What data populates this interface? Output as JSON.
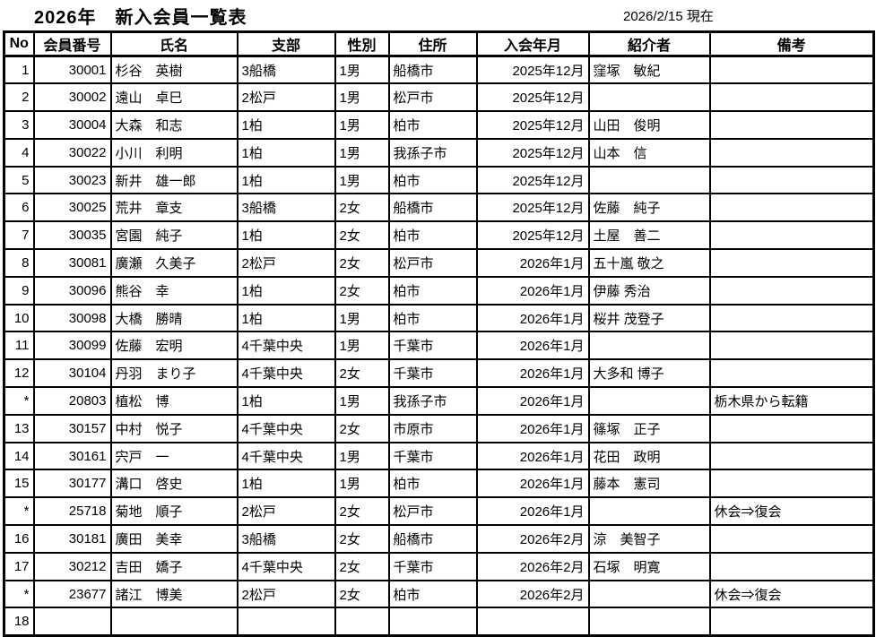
{
  "page": {
    "title": "2026年　新入会員一覧表",
    "as_of_date": "2026/2/15 現在"
  },
  "colors": {
    "text": "#000000",
    "background": "#ffffff",
    "grid": "#000000"
  },
  "table": {
    "columns": [
      {
        "key": "no",
        "label": "No"
      },
      {
        "key": "member_no",
        "label": "会員番号"
      },
      {
        "key": "name",
        "label": "氏名"
      },
      {
        "key": "branch",
        "label": "支部"
      },
      {
        "key": "gender",
        "label": "性別"
      },
      {
        "key": "address",
        "label": "住所"
      },
      {
        "key": "join_month",
        "label": "入会年月"
      },
      {
        "key": "introducer",
        "label": "紹介者"
      },
      {
        "key": "remarks",
        "label": "備考"
      }
    ],
    "rows": [
      {
        "no": "1",
        "member_no": "30001",
        "name": "杉谷　英樹",
        "branch": "3船橋",
        "gender": "1男",
        "address": "船橋市",
        "join_month": "2025年12月",
        "introducer": "窪塚　敏紀",
        "remarks": ""
      },
      {
        "no": "2",
        "member_no": "30002",
        "name": "遠山　卓巳",
        "branch": "2松戸",
        "gender": "1男",
        "address": "松戸市",
        "join_month": "2025年12月",
        "introducer": "",
        "remarks": ""
      },
      {
        "no": "3",
        "member_no": "30004",
        "name": "大森　和志",
        "branch": "1柏",
        "gender": "1男",
        "address": "柏市",
        "join_month": "2025年12月",
        "introducer": "山田　俊明",
        "remarks": ""
      },
      {
        "no": "4",
        "member_no": "30022",
        "name": "小川　利明",
        "branch": "1柏",
        "gender": "1男",
        "address": "我孫子市",
        "join_month": "2025年12月",
        "introducer": "山本　信",
        "remarks": ""
      },
      {
        "no": "5",
        "member_no": "30023",
        "name": "新井　雄一郎",
        "branch": "1柏",
        "gender": "1男",
        "address": "柏市",
        "join_month": "2025年12月",
        "introducer": "",
        "remarks": ""
      },
      {
        "no": "6",
        "member_no": "30025",
        "name": "荒井　章支",
        "branch": "3船橋",
        "gender": "2女",
        "address": "船橋市",
        "join_month": "2025年12月",
        "introducer": "佐藤　純子",
        "remarks": ""
      },
      {
        "no": "7",
        "member_no": "30035",
        "name": "宮園　純子",
        "branch": "1柏",
        "gender": "2女",
        "address": "柏市",
        "join_month": "2025年12月",
        "introducer": "土屋　善二",
        "remarks": ""
      },
      {
        "no": "8",
        "member_no": "30081",
        "name": "廣瀬　久美子",
        "branch": "2松戸",
        "gender": "2女",
        "address": "松戸市",
        "join_month": "2026年1月",
        "introducer": "五十嵐 敬之",
        "remarks": ""
      },
      {
        "no": "9",
        "member_no": "30096",
        "name": "熊谷　幸",
        "branch": "1柏",
        "gender": "2女",
        "address": "柏市",
        "join_month": "2026年1月",
        "introducer": "伊藤 秀治",
        "remarks": ""
      },
      {
        "no": "10",
        "member_no": "30098",
        "name": "大橋　勝晴",
        "branch": "1柏",
        "gender": "1男",
        "address": "柏市",
        "join_month": "2026年1月",
        "introducer": "桜井 茂登子",
        "remarks": ""
      },
      {
        "no": "11",
        "member_no": "30099",
        "name": "佐藤　宏明",
        "branch": "4千葉中央",
        "gender": "1男",
        "address": "千葉市",
        "join_month": "2026年1月",
        "introducer": "",
        "remarks": ""
      },
      {
        "no": "12",
        "member_no": "30104",
        "name": "丹羽　まり子",
        "branch": "4千葉中央",
        "gender": "2女",
        "address": "千葉市",
        "join_month": "2026年1月",
        "introducer": "大多和 博子",
        "remarks": ""
      },
      {
        "no": "*",
        "member_no": "20803",
        "name": "植松　博",
        "branch": "1柏",
        "gender": "1男",
        "address": "我孫子市",
        "join_month": "2026年1月",
        "introducer": "",
        "remarks": "栃木県から転籍"
      },
      {
        "no": "13",
        "member_no": "30157",
        "name": "中村　悦子",
        "branch": "4千葉中央",
        "gender": "2女",
        "address": "市原市",
        "join_month": "2026年1月",
        "introducer": "篠塚　正子",
        "remarks": ""
      },
      {
        "no": "14",
        "member_no": "30161",
        "name": "宍戸　一",
        "branch": "4千葉中央",
        "gender": "1男",
        "address": "千葉市",
        "join_month": "2026年1月",
        "introducer": "花田　政明",
        "remarks": ""
      },
      {
        "no": "15",
        "member_no": "30177",
        "name": "溝口　啓史",
        "branch": "1柏",
        "gender": "1男",
        "address": "柏市",
        "join_month": "2026年1月",
        "introducer": "藤本　憲司",
        "remarks": ""
      },
      {
        "no": "*",
        "member_no": "25718",
        "name": "菊地　順子",
        "branch": "2松戸",
        "gender": "2女",
        "address": "松戸市",
        "join_month": "2026年1月",
        "introducer": "",
        "remarks": "休会⇒復会"
      },
      {
        "no": "16",
        "member_no": "30181",
        "name": "廣田　美幸",
        "branch": "3船橋",
        "gender": "2女",
        "address": "船橋市",
        "join_month": "2026年2月",
        "introducer": "涼　美智子",
        "remarks": ""
      },
      {
        "no": "17",
        "member_no": "30212",
        "name": "吉田　嬌子",
        "branch": "4千葉中央",
        "gender": "2女",
        "address": "千葉市",
        "join_month": "2026年2月",
        "introducer": "石塚　明寛",
        "remarks": ""
      },
      {
        "no": "*",
        "member_no": "23677",
        "name": "諸江　博美",
        "branch": "2松戸",
        "gender": "2女",
        "address": "柏市",
        "join_month": "2026年2月",
        "introducer": "",
        "remarks": "休会⇒復会"
      },
      {
        "no": "18",
        "member_no": "",
        "name": "",
        "branch": "",
        "gender": "",
        "address": "",
        "join_month": "",
        "introducer": "",
        "remarks": ""
      }
    ]
  }
}
